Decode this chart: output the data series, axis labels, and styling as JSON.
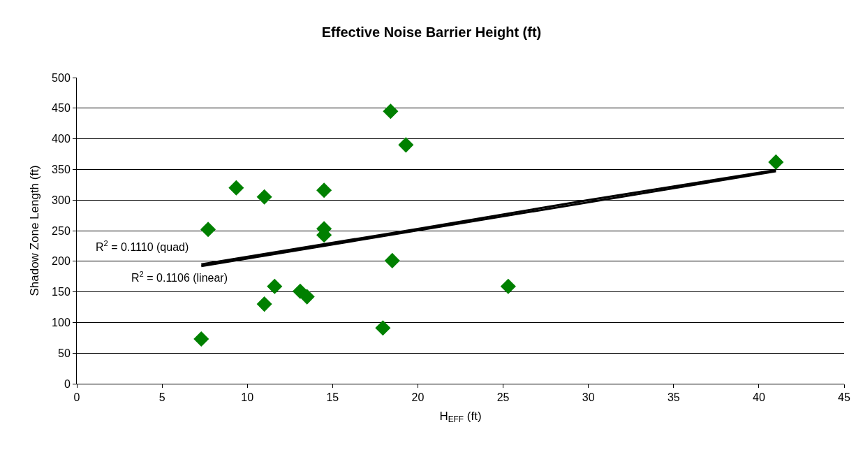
{
  "chart_data": {
    "type": "scatter",
    "title": "Effective Noise Barrier Height (ft)",
    "xlabel": "H$_{EFF}$ (ft)",
    "ylabel": "Shadow Zone Length (ft)",
    "series": [
      {
        "color": "#008000",
        "marker": "diamond",
        "x": [
          7.3,
          7.7,
          9.35,
          11.0,
          11.0,
          11.6,
          13.1,
          13.5,
          14.5,
          14.5,
          14.5,
          17.95,
          18.4,
          18.5,
          19.3,
          25.3,
          41.0
        ],
        "values": [
          73,
          252,
          320,
          305,
          130,
          159,
          151,
          142,
          316,
          253,
          243,
          91,
          445,
          201,
          390,
          159,
          362
        ]
      },
      {
        "type": "line",
        "color": "#000000",
        "marker": "none",
        "line_style": "solid",
        "x": [
          7.3,
          20,
          30,
          41
        ],
        "values": [
          195,
          253,
          300,
          349
        ]
      },
      {
        "type": "line",
        "color": "#000000",
        "marker": "none",
        "line_style": "solid",
        "x": [
          7.3,
          41
        ],
        "values": [
          192,
          347
        ]
      }
    ],
    "annotations": [
      "R$^{2}$ = 0.1110 (quad)",
      "R$^{2}$ = 0.1106 (linear)"
    ],
    "xlim": [
      0,
      45
    ],
    "xticks": [
      0,
      5,
      10,
      15,
      20,
      25,
      30,
      35,
      40,
      45
    ],
    "ylim": [
      0,
      500
    ],
    "yticks": [
      0,
      50,
      100,
      150,
      200,
      250,
      300,
      350,
      400,
      450,
      500
    ],
    "grid": "y"
  }
}
